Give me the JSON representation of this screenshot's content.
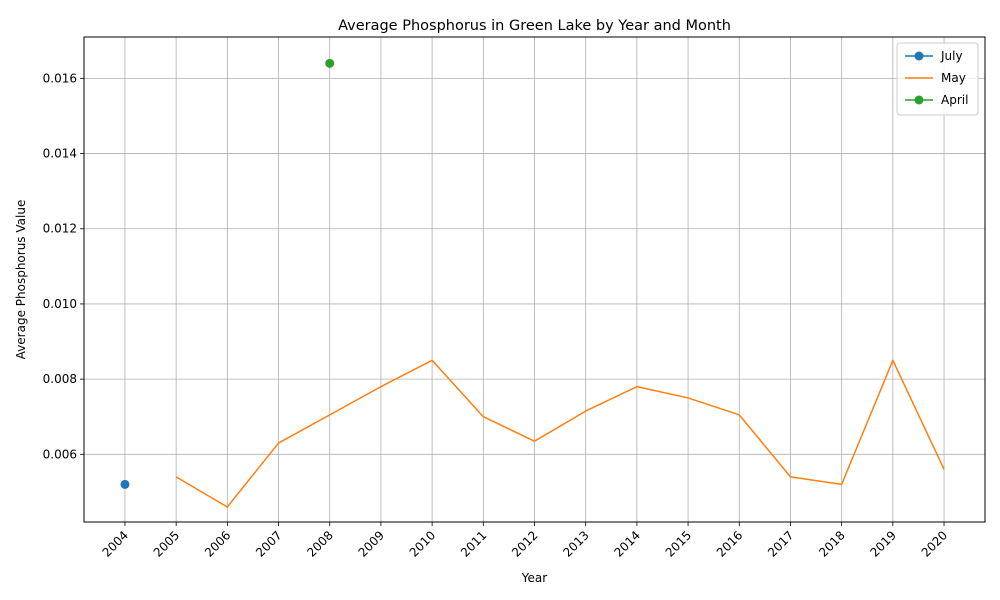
{
  "chart_data": {
    "type": "line",
    "title": "Average Phosphorus in Green Lake by Year and Month",
    "xlabel": "Year",
    "ylabel": "Average Phosphorus Value",
    "x": [
      2004,
      2005,
      2006,
      2007,
      2008,
      2009,
      2010,
      2011,
      2012,
      2013,
      2014,
      2015,
      2016,
      2017,
      2018,
      2019,
      2020
    ],
    "x_tick_labels": [
      "2004",
      "2005",
      "2006",
      "2007",
      "2008",
      "2009",
      "2010",
      "2011",
      "2012",
      "2013",
      "2014",
      "2015",
      "2016",
      "2017",
      "2018",
      "2019",
      "2020"
    ],
    "y_ticks": [
      0.006,
      0.008,
      0.01,
      0.012,
      0.014,
      0.016
    ],
    "y_tick_labels": [
      "0.006",
      "0.008",
      "0.010",
      "0.012",
      "0.014",
      "0.016"
    ],
    "ylim": [
      0.0042,
      0.0171
    ],
    "grid": true,
    "legend_position": "top-right",
    "series": [
      {
        "name": "July",
        "color": "#1f77b4",
        "marker": true,
        "points": [
          [
            2004,
            0.0052
          ]
        ]
      },
      {
        "name": "May",
        "color": "#ff7f0e",
        "marker": false,
        "points": [
          [
            2005,
            0.0054
          ],
          [
            2006,
            0.0046
          ],
          [
            2007,
            0.0063
          ],
          [
            2008,
            0.00705
          ],
          [
            2009,
            0.0078
          ],
          [
            2010,
            0.0085
          ],
          [
            2011,
            0.007
          ],
          [
            2012,
            0.00635
          ],
          [
            2013,
            0.00715
          ],
          [
            2014,
            0.0078
          ],
          [
            2015,
            0.0075
          ],
          [
            2016,
            0.00705
          ],
          [
            2017,
            0.0054
          ],
          [
            2018,
            0.0052
          ],
          [
            2019,
            0.0085
          ],
          [
            2020,
            0.0056
          ]
        ]
      },
      {
        "name": "April",
        "color": "#2ca02c",
        "marker": true,
        "points": [
          [
            2008,
            0.0164
          ]
        ]
      }
    ]
  }
}
